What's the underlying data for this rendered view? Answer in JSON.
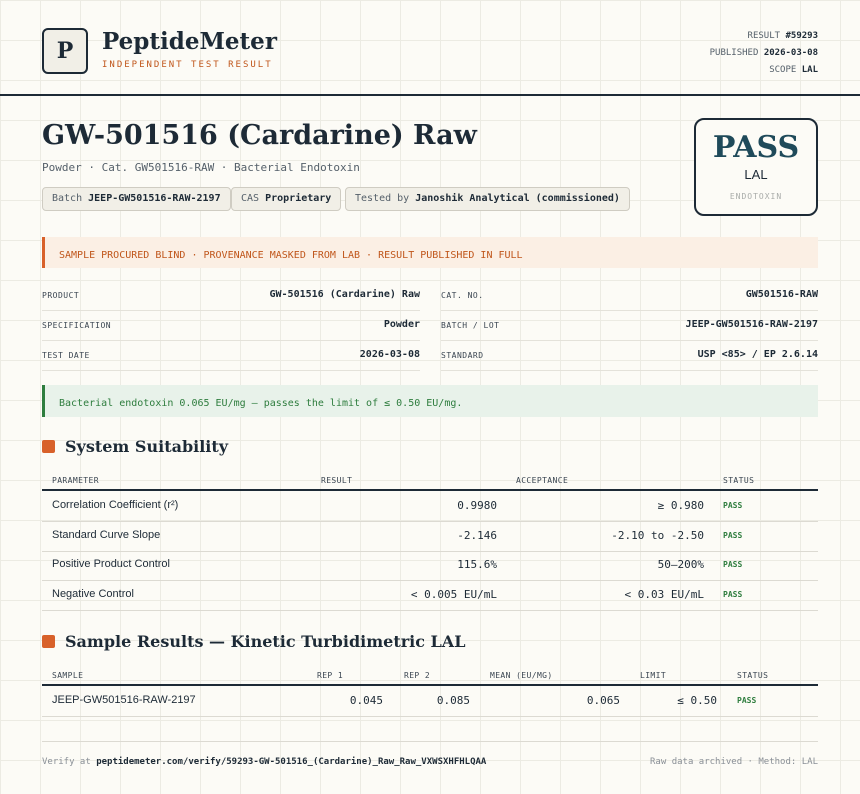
{
  "header": {
    "logo": "P",
    "brand": "PeptideMeter",
    "tagline": "INDEPENDENT TEST RESULT",
    "meta": [
      {
        "label": "RESULT",
        "value": "#59293"
      },
      {
        "label": "PUBLISHED",
        "value": "2026-03-08"
      },
      {
        "label": "SCOPE",
        "value": "LAL"
      }
    ]
  },
  "title": "GW-501516 (Cardarine) Raw",
  "subtitle": "Powder · Cat. GW501516-RAW · Bacterial Endotoxin",
  "chips": [
    {
      "label": "Batch",
      "value": "JEEP-GW501516-RAW-2197"
    },
    {
      "label": "CAS",
      "value": "Proprietary"
    },
    {
      "label": "Tested by",
      "value": "Janoshik Analytical (commissioned)"
    }
  ],
  "stamp": {
    "verdict": "PASS",
    "scope": "LAL",
    "note": "ENDOTOXIN"
  },
  "notice": "SAMPLE PROCURED BLIND · PROVENANCE MASKED FROM LAB · RESULT PUBLISHED IN FULL",
  "details": [
    [
      {
        "label": "PRODUCT",
        "value": "GW-501516 (Cardarine) Raw"
      },
      {
        "label": "CAT. NO.",
        "value": "GW501516-RAW"
      }
    ],
    [
      {
        "label": "SPECIFICATION",
        "value": "Powder"
      },
      {
        "label": "BATCH / LOT",
        "value": "JEEP-GW501516-RAW-2197"
      }
    ],
    [
      {
        "label": "TEST DATE",
        "value": "2026-03-08"
      },
      {
        "label": "STANDARD",
        "value": "USP <85> / EP 2.6.14"
      }
    ]
  ],
  "conclusion": "Bacterial endotoxin 0.065 EU/mg — passes the limit of ≤ 0.50 EU/mg.",
  "suitability": {
    "title": "System Suitability",
    "headers": [
      "PARAMETER",
      "RESULT",
      "ACCEPTANCE",
      "STATUS"
    ],
    "rows": [
      [
        "Correlation Coefficient (r²)",
        "0.9980",
        "≥ 0.980",
        "PASS"
      ],
      [
        "Standard Curve Slope",
        "-2.146",
        "-2.10 to -2.50",
        "PASS"
      ],
      [
        "Positive Product Control",
        "115.6%",
        "50–200%",
        "PASS"
      ],
      [
        "Negative Control",
        "< 0.005 EU/mL",
        "< 0.03 EU/mL",
        "PASS"
      ]
    ]
  },
  "samples": {
    "title": "Sample Results — Kinetic Turbidimetric LAL",
    "headers": [
      "SAMPLE",
      "REP 1",
      "REP 2",
      "MEAN (EU/MG)",
      "LIMIT",
      "STATUS"
    ],
    "rows": [
      [
        "JEEP-GW501516-RAW-2197",
        "0.045",
        "0.085",
        "0.065",
        "≤ 0.50",
        "PASS"
      ]
    ]
  },
  "footer": {
    "prefix": "Verify at",
    "url": "peptidemeter.com/verify/59293-GW-501516_(Cardarine)_Raw_Raw_VXWSXHFHLQAA",
    "right": "Raw data archived · Method: LAL"
  }
}
